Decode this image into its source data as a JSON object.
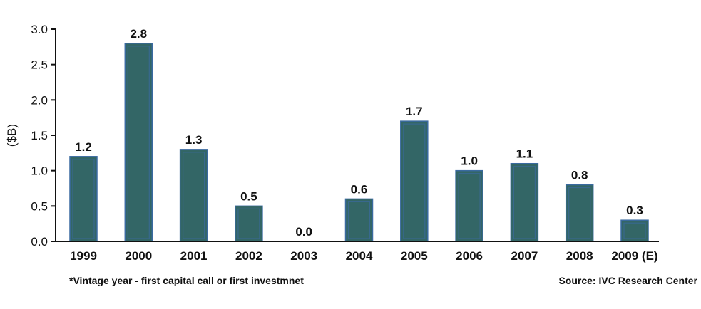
{
  "chart_data": {
    "type": "bar",
    "categories": [
      "1999",
      "2000",
      "2001",
      "2002",
      "2003",
      "2004",
      "2005",
      "2006",
      "2007",
      "2008",
      "2009 (E)"
    ],
    "values": [
      1.2,
      2.8,
      1.3,
      0.5,
      0.0,
      0.6,
      1.7,
      1.0,
      1.1,
      0.8,
      0.3
    ],
    "data_labels": [
      "1.2",
      "2.8",
      "1.3",
      "0.5",
      "0.0",
      "0.6",
      "1.7",
      "1.0",
      "1.1",
      "0.8",
      "0.3"
    ],
    "ylabel": "($B)",
    "ylim": [
      0,
      3.0
    ],
    "yticks": [
      "0.0",
      "0.5",
      "1.0",
      "1.5",
      "2.0",
      "2.5",
      "3.0"
    ],
    "ytick_values": [
      0,
      0.5,
      1.0,
      1.5,
      2.0,
      2.5,
      3.0
    ],
    "grid": false,
    "legend": "none",
    "bar_color": "#336666",
    "bar_outline_color": "#3a6aa0"
  },
  "footnote": "*Vintage year - first capital call or first investmnet",
  "source": "Source: IVC Research Center"
}
